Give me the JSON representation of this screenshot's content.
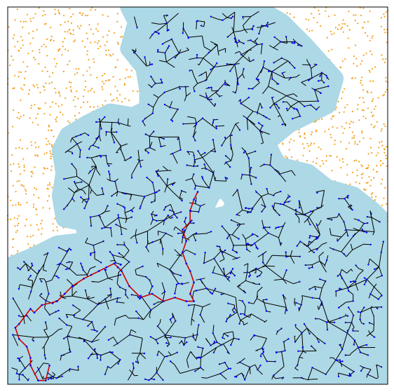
{
  "chart_data": {
    "type": "scatter",
    "description": "",
    "xlim": [
      0,
      1
    ],
    "ylim": [
      0,
      1
    ],
    "grid": false,
    "ticks": false,
    "colors": {
      "free_points": "#f5a01a",
      "coverage": "#add8e6",
      "tree_edges": "#000000",
      "tree_nodes": "#0000ff",
      "path": "#cc0000",
      "frame": "#000000"
    },
    "tree_seed": 11,
    "node_count": 1650,
    "coverage_polygon": [
      [
        0.0,
        0.0
      ],
      [
        0.0,
        0.31
      ],
      [
        0.07,
        0.34
      ],
      [
        0.13,
        0.37
      ],
      [
        0.21,
        0.38
      ],
      [
        0.2,
        0.43
      ],
      [
        0.15,
        0.44
      ],
      [
        0.14,
        0.5
      ],
      [
        0.15,
        0.56
      ],
      [
        0.14,
        0.62
      ],
      [
        0.16,
        0.66
      ],
      [
        0.21,
        0.69
      ],
      [
        0.27,
        0.72
      ],
      [
        0.33,
        0.71
      ],
      [
        0.37,
        0.73
      ],
      [
        0.37,
        0.78
      ],
      [
        0.36,
        0.84
      ],
      [
        0.32,
        0.89
      ],
      [
        0.34,
        0.96
      ],
      [
        0.32,
        1.0
      ],
      [
        0.65,
        1.0
      ],
      [
        0.72,
        0.96
      ],
      [
        0.78,
        0.9
      ],
      [
        0.86,
        0.81
      ],
      [
        0.84,
        0.74
      ],
      [
        0.74,
        0.69
      ],
      [
        0.68,
        0.64
      ],
      [
        0.71,
        0.58
      ],
      [
        0.79,
        0.56
      ],
      [
        0.84,
        0.52
      ],
      [
        0.91,
        0.5
      ],
      [
        0.96,
        0.46
      ],
      [
        1.0,
        0.42
      ],
      [
        1.0,
        0.05
      ],
      [
        0.97,
        0.0
      ]
    ],
    "coverage_holes": [
      [
        [
          0.53,
          0.44
        ],
        [
          0.58,
          0.45
        ],
        [
          0.6,
          0.48
        ],
        [
          0.57,
          0.52
        ],
        [
          0.54,
          0.51
        ],
        [
          0.52,
          0.47
        ]
      ],
      [
        [
          0.6,
          0.06
        ],
        [
          0.64,
          0.08
        ],
        [
          0.62,
          0.12
        ],
        [
          0.58,
          0.1
        ]
      ],
      [
        [
          0.42,
          0.78
        ],
        [
          0.46,
          0.8
        ],
        [
          0.45,
          0.83
        ],
        [
          0.41,
          0.82
        ]
      ],
      [
        [
          0.07,
          0.16
        ],
        [
          0.1,
          0.17
        ],
        [
          0.09,
          0.2
        ],
        [
          0.06,
          0.19
        ]
      ]
    ],
    "free_points_region": [
      [
        0.0,
        0.31
      ],
      [
        0.0,
        1.0
      ],
      [
        0.32,
        1.0
      ],
      [
        0.34,
        0.96
      ],
      [
        0.32,
        0.89
      ],
      [
        0.36,
        0.84
      ],
      [
        0.37,
        0.78
      ],
      [
        0.37,
        0.73
      ],
      [
        0.33,
        0.71
      ],
      [
        0.27,
        0.72
      ],
      [
        0.21,
        0.69
      ],
      [
        0.16,
        0.66
      ],
      [
        0.14,
        0.62
      ],
      [
        0.15,
        0.56
      ],
      [
        0.14,
        0.5
      ],
      [
        0.15,
        0.44
      ],
      [
        0.2,
        0.43
      ],
      [
        0.21,
        0.38
      ],
      [
        0.13,
        0.37
      ],
      [
        0.07,
        0.34
      ]
    ],
    "free_points_region_right": [
      [
        0.65,
        1.0
      ],
      [
        1.0,
        1.0
      ],
      [
        1.0,
        0.42
      ],
      [
        0.96,
        0.46
      ],
      [
        0.91,
        0.5
      ],
      [
        0.84,
        0.52
      ],
      [
        0.79,
        0.56
      ],
      [
        0.71,
        0.58
      ],
      [
        0.68,
        0.64
      ],
      [
        0.74,
        0.69
      ],
      [
        0.84,
        0.74
      ],
      [
        0.86,
        0.81
      ],
      [
        0.78,
        0.9
      ],
      [
        0.72,
        0.96
      ]
    ],
    "path": [
      [
        0.5,
        0.51
      ],
      [
        0.49,
        0.49
      ],
      [
        0.48,
        0.46
      ],
      [
        0.48,
        0.43
      ],
      [
        0.46,
        0.41
      ],
      [
        0.47,
        0.38
      ],
      [
        0.46,
        0.35
      ],
      [
        0.47,
        0.32
      ],
      [
        0.48,
        0.3
      ],
      [
        0.49,
        0.27
      ],
      [
        0.48,
        0.24
      ],
      [
        0.49,
        0.22
      ],
      [
        0.47,
        0.22
      ],
      [
        0.44,
        0.23
      ],
      [
        0.41,
        0.22
      ],
      [
        0.38,
        0.24
      ],
      [
        0.35,
        0.23
      ],
      [
        0.32,
        0.26
      ],
      [
        0.3,
        0.3
      ],
      [
        0.29,
        0.31
      ],
      [
        0.28,
        0.32
      ],
      [
        0.26,
        0.31
      ],
      [
        0.24,
        0.3
      ],
      [
        0.22,
        0.29
      ],
      [
        0.2,
        0.28
      ],
      [
        0.17,
        0.26
      ],
      [
        0.15,
        0.24
      ],
      [
        0.13,
        0.22
      ],
      [
        0.09,
        0.21
      ],
      [
        0.07,
        0.19
      ],
      [
        0.06,
        0.2
      ],
      [
        0.03,
        0.16
      ],
      [
        0.02,
        0.15
      ],
      [
        0.03,
        0.12
      ],
      [
        0.05,
        0.1
      ],
      [
        0.06,
        0.07
      ],
      [
        0.06,
        0.05
      ],
      [
        0.08,
        0.01
      ],
      [
        0.1,
        0.01
      ],
      [
        0.11,
        0.05
      ]
    ]
  }
}
